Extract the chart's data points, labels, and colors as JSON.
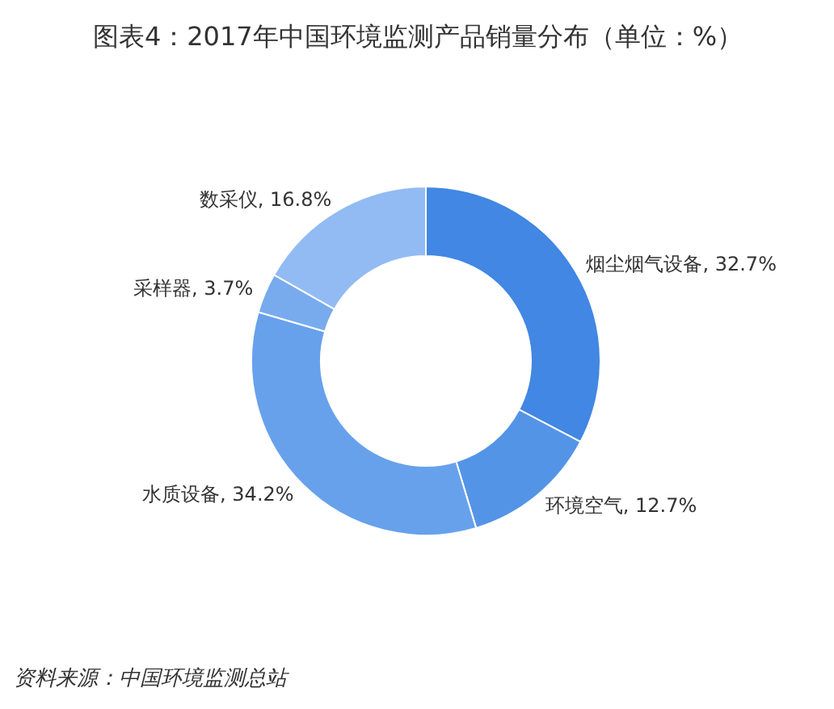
{
  "chart_data": {
    "type": "donut",
    "title": "图表4：2017年中国环境监测产品销量分布（单位：%）",
    "categories": [
      "烟尘烟气设备",
      "环境空气",
      "水质设备",
      "采样器",
      "数采仪"
    ],
    "values": [
      32.7,
      12.7,
      34.2,
      3.7,
      16.8
    ],
    "value_labels": [
      "32.7%",
      "12.7%",
      "34.2%",
      "3.7%",
      "16.8%"
    ],
    "colors": [
      "#4187e3",
      "#5494e6",
      "#67a1ec",
      "#77abee",
      "#92bbf3"
    ],
    "annotations": [
      "资料来源：中国环境监测总站"
    ]
  }
}
